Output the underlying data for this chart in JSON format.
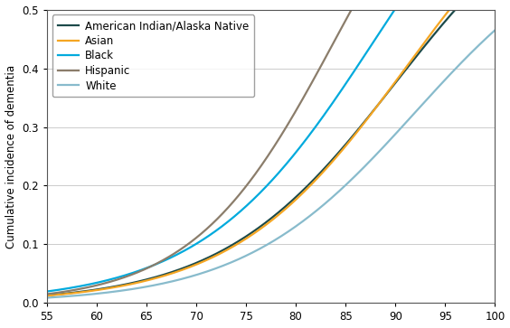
{
  "title": "",
  "ylabel": "Cumulative incidence of dementia",
  "xlabel": "",
  "xlim": [
    55,
    100
  ],
  "ylim": [
    0,
    0.5
  ],
  "yticks": [
    0.0,
    0.1,
    0.2,
    0.3,
    0.4,
    0.5
  ],
  "xticks": [
    55,
    60,
    65,
    70,
    75,
    80,
    85,
    90,
    95,
    100
  ],
  "groups": [
    {
      "label": "American Indian/Alaska Native",
      "color": "#1c4a4a",
      "L": 0.75,
      "midpoint": 90,
      "steepness": 0.115
    },
    {
      "label": "Asian",
      "color": "#f5a623",
      "L": 0.8,
      "midpoint": 91,
      "steepness": 0.115
    },
    {
      "label": "Black",
      "color": "#00aadd",
      "L": 0.9,
      "midpoint": 88,
      "steepness": 0.115
    },
    {
      "label": "Hispanic",
      "color": "#8b7d6b",
      "L": 0.9,
      "midpoint": 84,
      "steepness": 0.14
    },
    {
      "label": "White",
      "color": "#88bbcc",
      "L": 0.65,
      "midpoint": 92,
      "steepness": 0.115
    }
  ],
  "background_color": "#ffffff",
  "grid_color": "#cccccc",
  "border_color": "#555555",
  "legend_fontsize": 8.5,
  "axis_fontsize": 8.5,
  "linewidth": 1.6
}
